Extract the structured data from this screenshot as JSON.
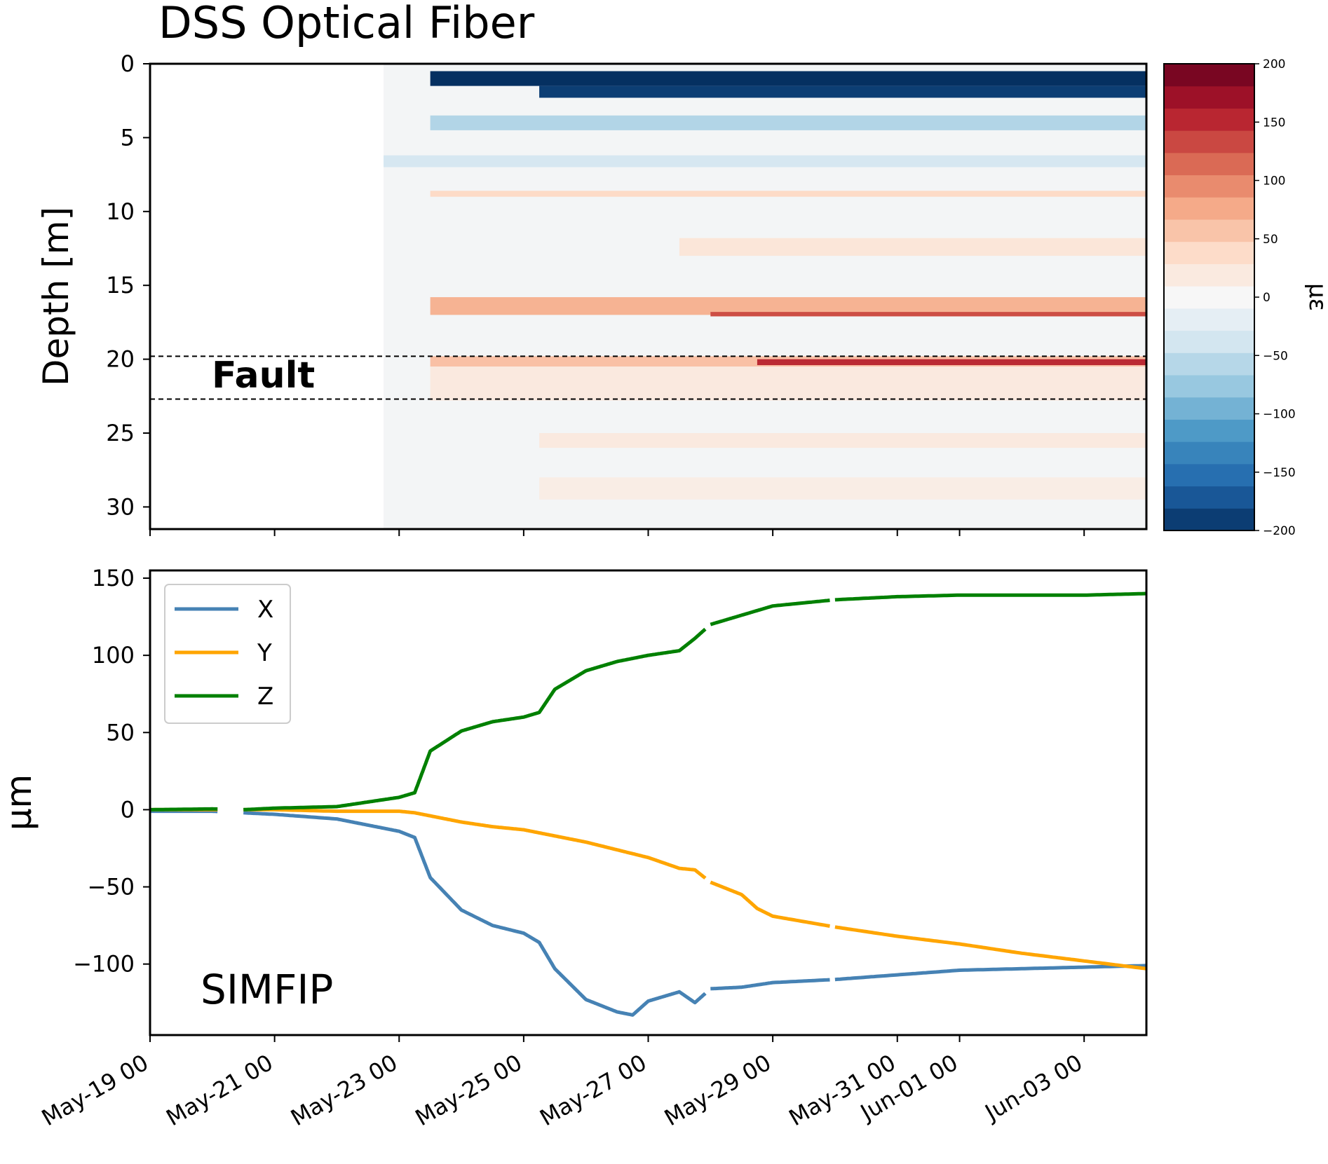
{
  "chart_data": [
    {
      "type": "heatmap",
      "title": "DSS Optical Fiber",
      "ylabel": "Depth [m]",
      "ylim": [
        31.5,
        0
      ],
      "yticks": [
        0,
        5,
        10,
        15,
        20,
        25,
        30
      ],
      "xlim": [
        "May-19 00",
        "Jun-04 00"
      ],
      "x_start": "May-19 00",
      "colorbar": {
        "label": "με",
        "range": [
          -200,
          200
        ],
        "ticks": [
          200,
          150,
          100,
          50,
          0,
          -50,
          -100,
          -150,
          -200
        ],
        "tick_labels": [
          "200",
          "150",
          "100",
          "50",
          "0",
          "−50",
          "−100",
          "−150",
          "−200"
        ],
        "levels": 21,
        "colormap": "RdBu_r"
      },
      "data_start": "May-22 18",
      "bands": [
        {
          "depth": [
            0.5,
            1.5
          ],
          "value": -200,
          "from": "May-23 12"
        },
        {
          "depth": [
            1.5,
            2.3
          ],
          "value": -190,
          "from": "May-25 06"
        },
        {
          "depth": [
            3.5,
            4.5
          ],
          "value": -60,
          "from": "May-23 12"
        },
        {
          "depth": [
            6.2,
            7.0
          ],
          "value": -35,
          "from": "May-22 18"
        },
        {
          "depth": [
            8.6,
            9.0
          ],
          "value": 40,
          "from": "May-23 12"
        },
        {
          "depth": [
            11.8,
            13.0
          ],
          "value": 25,
          "from": "May-27 12"
        },
        {
          "depth": [
            15.8,
            17.0
          ],
          "value": 70,
          "from": "May-23 12"
        },
        {
          "depth": [
            16.8,
            17.1
          ],
          "value": 130,
          "from": "May-28 00"
        },
        {
          "depth": [
            19.8,
            20.5
          ],
          "value": 60,
          "from": "May-23 12"
        },
        {
          "depth": [
            20.0,
            20.4
          ],
          "value": 150,
          "from": "May-28 18"
        },
        {
          "depth": [
            20.5,
            22.8
          ],
          "value": 20,
          "from": "May-23 12"
        },
        {
          "depth": [
            25.0,
            26.0
          ],
          "value": 20,
          "from": "May-25 06"
        },
        {
          "depth": [
            28.0,
            29.5
          ],
          "value": 15,
          "from": "May-25 06"
        }
      ],
      "annotation": {
        "text": "Fault",
        "depth_range": [
          19.8,
          22.7
        ]
      }
    },
    {
      "type": "line",
      "ylabel": "μm",
      "ylim": [
        -146,
        155
      ],
      "yticks": [
        150,
        100,
        50,
        0,
        -50,
        -100
      ],
      "ytick_labels": [
        "150",
        "100",
        "50",
        "0",
        "−50",
        "−100"
      ],
      "xlim": [
        "May-19 00",
        "Jun-04 00"
      ],
      "xtick_labels": [
        "May-19 00",
        "May-21 00",
        "May-23 00",
        "May-25 00",
        "May-27 00",
        "May-29 00",
        "May-31 00",
        "Jun-01 00",
        "Jun-03 00"
      ],
      "xtick_days": [
        0,
        2,
        4,
        6,
        8,
        10,
        12,
        13,
        15
      ],
      "annotation": "SIMFIP",
      "legend": "upper left",
      "grid": false,
      "series": [
        {
          "name": "X",
          "color": "#4682b4",
          "x": [
            "May-19 00",
            "May-20 00",
            "May-20 12",
            "May-21 00",
            "May-22 00",
            "May-22 12",
            "May-23 00",
            "May-23 06",
            "May-23 12",
            "May-24 00",
            "May-24 12",
            "May-25 00",
            "May-25 06",
            "May-25 12",
            "May-26 00",
            "May-26 12",
            "May-26 18",
            "May-27 00",
            "May-27 12",
            "May-27 18",
            "May-28 00",
            "May-28 12",
            "May-29 00",
            "May-30 00",
            "May-31 00",
            "Jun-01 00",
            "Jun-02 00",
            "Jun-03 00",
            "Jun-04 00"
          ],
          "y": [
            -1,
            -1,
            -2,
            -3,
            -6,
            -10,
            -14,
            -18,
            -44,
            -65,
            -75,
            -80,
            -86,
            -103,
            -123,
            -131,
            -133,
            -124,
            -118,
            -125,
            -116,
            -115,
            -112,
            -110,
            -107,
            -104,
            -103,
            -102,
            -101
          ]
        },
        {
          "name": "Y",
          "color": "#ffa500",
          "x": [
            "May-19 00",
            "May-20 00",
            "May-20 12",
            "May-21 00",
            "May-22 00",
            "May-23 00",
            "May-23 06",
            "May-23 12",
            "May-24 00",
            "May-24 12",
            "May-25 00",
            "May-25 06",
            "May-25 12",
            "May-26 00",
            "May-26 12",
            "May-27 00",
            "May-27 12",
            "May-27 18",
            "May-28 00",
            "May-28 12",
            "May-28 18",
            "May-29 00",
            "May-30 00",
            "May-31 00",
            "Jun-01 00",
            "Jun-02 00",
            "Jun-03 00",
            "Jun-04 00"
          ],
          "y": [
            0,
            0,
            0,
            0,
            -1,
            -1,
            -2,
            -4,
            -8,
            -11,
            -13,
            -15,
            -17,
            -21,
            -26,
            -31,
            -38,
            -39,
            -47,
            -55,
            -64,
            -69,
            -76,
            -82,
            -87,
            -93,
            -98,
            -103
          ]
        },
        {
          "name": "Z",
          "color": "#008000",
          "x": [
            "May-19 00",
            "May-20 00",
            "May-20 12",
            "May-21 00",
            "May-22 00",
            "May-22 12",
            "May-23 00",
            "May-23 06",
            "May-23 12",
            "May-24 00",
            "May-24 12",
            "May-25 00",
            "May-25 06",
            "May-25 12",
            "May-26 00",
            "May-26 12",
            "May-27 00",
            "May-27 12",
            "May-27 18",
            "May-28 00",
            "May-28 12",
            "May-29 00",
            "May-30 00",
            "May-31 00",
            "Jun-01 00",
            "Jun-02 00",
            "Jun-03 00",
            "Jun-04 00"
          ],
          "y": [
            0,
            0.5,
            0,
            1,
            2,
            5,
            8,
            11,
            38,
            51,
            57,
            60,
            63,
            78,
            90,
            96,
            100,
            103,
            111,
            120,
            126,
            132,
            136,
            138,
            139,
            139,
            139,
            140
          ]
        }
      ],
      "gaps": [
        [
          "May-20 02",
          "May-20 12"
        ],
        [
          "May-27 22",
          "May-28 00"
        ],
        [
          "May-29 22",
          "May-30 00"
        ]
      ]
    }
  ]
}
